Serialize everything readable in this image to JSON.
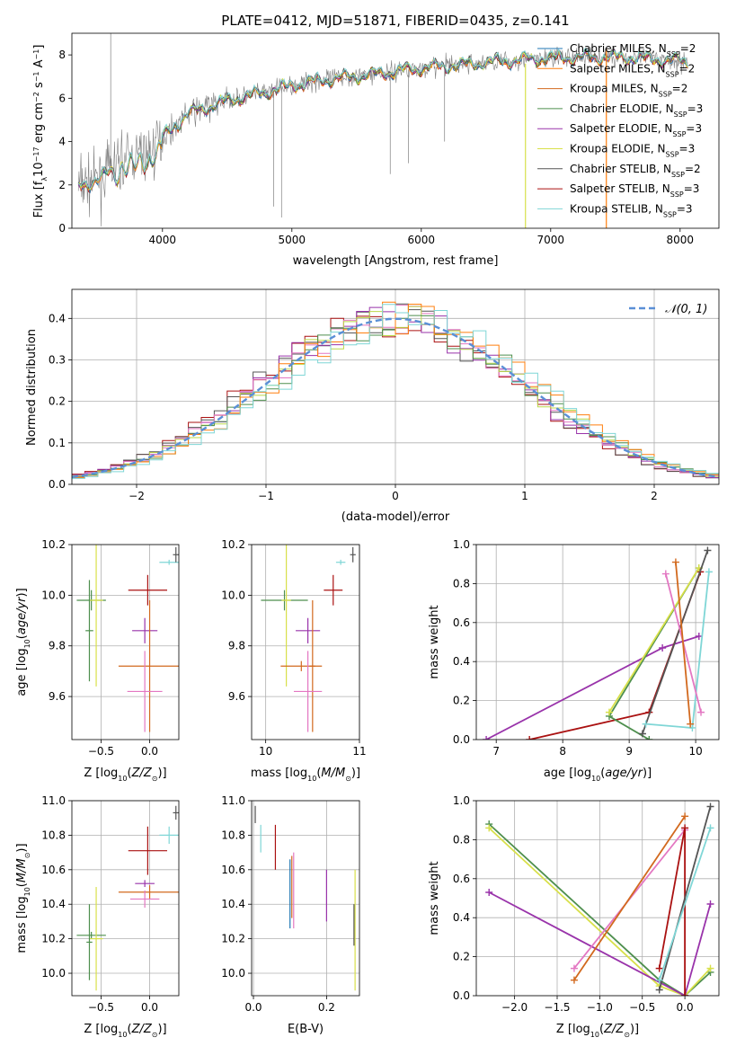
{
  "colors": {
    "Chabrier MILES": "#1f77b4",
    "Salpeter MILES": "#ff7f0e",
    "Kroupa MILES": "#d2691e",
    "Chabrier ELODIE": "#4e8f4e",
    "Salpeter ELODIE": "#9933aa",
    "Kroupa ELODIE": "#d8e04a",
    "Chabrier STELIB": "#555555",
    "Salpeter STELIB": "#aa1111",
    "Kroupa STELIB": "#7fd6d6",
    "data": "#808080",
    "normal_curve": "#5a8fd6",
    "pink": "#e377c2",
    "lime": "#bcd84a"
  },
  "chart_data": [
    {
      "id": "spectrum",
      "type": "line",
      "title": "PLATE=0412, MJD=51871, FIBERID=0435, z=0.141",
      "xlabel": "wavelength [Angstrom, rest frame]",
      "ylabel": "Flux [f_λ 10^{-17} erg cm^{-2} s^{-1} A^{-1}]",
      "xlim": [
        3300,
        8300
      ],
      "ylim": [
        0,
        9
      ],
      "xticks": [
        "4000",
        "5000",
        "6000",
        "7000",
        "8000"
      ],
      "yticks": [
        "0",
        "2",
        "4",
        "6",
        "8"
      ],
      "grid": false,
      "legend_position": "top-right",
      "legend": [
        {
          "label": "Chabrier MILES, N",
          "sub": "SSP",
          "suffix": "=2"
        },
        {
          "label": "Salpeter MILES, N",
          "sub": "SSP",
          "suffix": "=2"
        },
        {
          "label": "Kroupa MILES, N",
          "sub": "SSP",
          "suffix": "=2"
        },
        {
          "label": "Chabrier ELODIE, N",
          "sub": "SSP",
          "suffix": "=3"
        },
        {
          "label": "Salpeter ELODIE, N",
          "sub": "SSP",
          "suffix": "=3"
        },
        {
          "label": "Kroupa ELODIE, N",
          "sub": "SSP",
          "suffix": "=3"
        },
        {
          "label": "Chabrier STELIB, N",
          "sub": "SSP",
          "suffix": "=2"
        },
        {
          "label": "Salpeter STELIB, N",
          "sub": "SSP",
          "suffix": "=3"
        },
        {
          "label": "Kroupa STELIB, N",
          "sub": "SSP",
          "suffix": "=3"
        }
      ],
      "continuum": {
        "x": [
          3350,
          3500,
          3700,
          3900,
          4050,
          4200,
          4500,
          4800,
          5000,
          5300,
          5600,
          6000,
          6400,
          6800,
          7200,
          7600,
          8050
        ],
        "y": [
          2.0,
          2.2,
          3.2,
          3.5,
          4.5,
          5.3,
          5.9,
          6.3,
          6.6,
          6.9,
          7.1,
          7.4,
          7.6,
          7.8,
          7.9,
          7.9,
          7.7
        ]
      }
    },
    {
      "id": "residuals",
      "type": "bar",
      "xlabel": "(data-model)/error",
      "ylabel": "Normed distribution",
      "xlim": [
        -2.5,
        2.5
      ],
      "ylim": [
        0,
        0.47
      ],
      "xticks": [
        "−2",
        "−1",
        "0",
        "1",
        "2"
      ],
      "yticks": [
        "0.0",
        "0.1",
        "0.2",
        "0.3",
        "0.4"
      ],
      "grid": true,
      "legend_position": "top-right",
      "legend": [
        {
          "label": "𝒩(0, 1)"
        }
      ],
      "bin_width": 0.1
    },
    {
      "id": "age_vs_Z",
      "type": "scatter",
      "xlabel": "Z [log10(Z/Z⊙)]",
      "ylabel": "age  [log10(age/yr)]",
      "xlim": [
        -0.8,
        0.3
      ],
      "ylim": [
        9.43,
        10.2
      ],
      "xticks": [
        "−0.5",
        "0.0"
      ],
      "yticks": [
        "9.6",
        "9.8",
        "10.0",
        "10.2"
      ],
      "grid": true,
      "points": [
        {
          "x": -0.6,
          "xe": 0.15,
          "y": 9.98,
          "ye": 0.04,
          "c": "#4e8f4e"
        },
        {
          "x": -0.55,
          "xe": 0.07,
          "y": 9.98,
          "ye": 0.34,
          "c": "#d8e04a"
        },
        {
          "x": -0.62,
          "xe": 0.04,
          "y": 9.86,
          "ye": 0.2,
          "c": "#4e8f4e"
        },
        {
          "x": -0.05,
          "xe": 0.13,
          "y": 9.86,
          "ye": 0.05,
          "c": "#9933aa"
        },
        {
          "x": 0.0,
          "xe": 0.32,
          "y": 9.72,
          "ye": 0.26,
          "c": "#d2691e"
        },
        {
          "x": -0.05,
          "xe": 0.18,
          "y": 9.62,
          "ye": 0.16,
          "c": "#e377c2"
        },
        {
          "x": -0.02,
          "xe": 0.2,
          "y": 10.02,
          "ye": 0.06,
          "c": "#aa1111"
        },
        {
          "x": 0.2,
          "xe": 0.1,
          "y": 10.13,
          "ye": 0.01,
          "c": "#7fd6d6"
        },
        {
          "x": 0.27,
          "xe": 0.03,
          "y": 10.16,
          "ye": 0.03,
          "c": "#555555"
        }
      ]
    },
    {
      "id": "age_vs_mass",
      "type": "scatter",
      "xlabel": "mass [log10(M/M⊙)]",
      "ylabel": "",
      "xlim": [
        9.85,
        11.0
      ],
      "ylim": [
        9.43,
        10.2
      ],
      "xticks": [
        "10",
        "11"
      ],
      "yticks": [
        "9.6",
        "9.8",
        "10.0",
        "10.2"
      ],
      "grid": true,
      "points": [
        {
          "x": 10.2,
          "xe": 0.25,
          "y": 9.98,
          "ye": 0.04,
          "c": "#4e8f4e"
        },
        {
          "x": 10.22,
          "xe": 0.05,
          "y": 9.98,
          "ye": 0.34,
          "c": "#d8e04a"
        },
        {
          "x": 10.45,
          "xe": 0.13,
          "y": 9.86,
          "ye": 0.05,
          "c": "#9933aa"
        },
        {
          "x": 10.5,
          "xe": 0.03,
          "y": 9.72,
          "ye": 0.26,
          "c": "#d2691e"
        },
        {
          "x": 10.38,
          "xe": 0.22,
          "y": 9.72,
          "ye": 0.02,
          "c": "#d2691e"
        },
        {
          "x": 10.45,
          "xe": 0.15,
          "y": 9.62,
          "ye": 0.16,
          "c": "#e377c2"
        },
        {
          "x": 10.72,
          "xe": 0.1,
          "y": 10.02,
          "ye": 0.06,
          "c": "#aa1111"
        },
        {
          "x": 10.8,
          "xe": 0.05,
          "y": 10.13,
          "ye": 0.01,
          "c": "#7fd6d6"
        },
        {
          "x": 10.93,
          "xe": 0.03,
          "y": 10.16,
          "ye": 0.03,
          "c": "#555555"
        }
      ]
    },
    {
      "id": "weight_vs_age",
      "type": "line",
      "xlabel": "age  [log10(age/yr)]",
      "ylabel": "mass weight",
      "xlim": [
        6.7,
        10.35
      ],
      "ylim": [
        0,
        1
      ],
      "xticks": [
        "7",
        "8",
        "9",
        "10"
      ],
      "yticks": [
        "0.0",
        "0.2",
        "0.4",
        "0.6",
        "0.8",
        "1.0"
      ],
      "grid": true,
      "series": [
        {
          "c": "#9933aa",
          "x": [
            6.85,
            9.5,
            10.05
          ],
          "y": [
            0.0,
            0.47,
            0.53
          ]
        },
        {
          "c": "#aa1111",
          "x": [
            7.5,
            9.3,
            10.07
          ],
          "y": [
            0.0,
            0.14,
            0.86
          ]
        },
        {
          "c": "#4e8f4e",
          "x": [
            9.3,
            8.7,
            10.05
          ],
          "y": [
            0.0,
            0.12,
            0.88
          ]
        },
        {
          "c": "#d8e04a",
          "x": [
            8.7,
            10.05
          ],
          "y": [
            0.14,
            0.88
          ]
        },
        {
          "c": "#555555",
          "x": [
            9.2,
            10.18
          ],
          "y": [
            0.03,
            0.97
          ]
        },
        {
          "c": "#7fd6d6",
          "x": [
            9.25,
            9.95,
            10.2
          ],
          "y": [
            0.08,
            0.06,
            0.86
          ]
        },
        {
          "c": "#e377c2",
          "x": [
            9.55,
            10.08
          ],
          "y": [
            0.85,
            0.14
          ]
        },
        {
          "c": "#d2691e",
          "x": [
            9.7,
            9.92
          ],
          "y": [
            0.91,
            0.08
          ]
        }
      ]
    },
    {
      "id": "mass_vs_Z",
      "type": "scatter",
      "xlabel": "Z [log10(Z/Z⊙)]",
      "ylabel": "mass [log10(M/M⊙)]",
      "xlim": [
        -0.8,
        0.3
      ],
      "ylim": [
        9.87,
        11.0
      ],
      "xticks": [
        "−0.5",
        "0.0"
      ],
      "yticks": [
        "10.0",
        "10.2",
        "10.4",
        "10.6",
        "10.8",
        "11.0"
      ],
      "grid": true,
      "points": [
        {
          "x": -0.6,
          "xe": 0.15,
          "y": 10.22,
          "ye": 0.02,
          "c": "#4e8f4e"
        },
        {
          "x": -0.55,
          "xe": 0.07,
          "y": 10.2,
          "ye": 0.3,
          "c": "#d8e04a"
        },
        {
          "x": -0.62,
          "xe": 0.03,
          "y": 10.18,
          "ye": 0.22,
          "c": "#4e8f4e"
        },
        {
          "x": -0.05,
          "xe": 0.1,
          "y": 10.52,
          "ye": 0.02,
          "c": "#9933aa"
        },
        {
          "x": 0.0,
          "xe": 0.32,
          "y": 10.47,
          "ye": 0.04,
          "c": "#d2691e"
        },
        {
          "x": -0.05,
          "xe": 0.15,
          "y": 10.43,
          "ye": 0.05,
          "c": "#e377c2"
        },
        {
          "x": -0.02,
          "xe": 0.2,
          "y": 10.71,
          "ye": 0.14,
          "c": "#aa1111"
        },
        {
          "x": 0.2,
          "xe": 0.1,
          "y": 10.8,
          "ye": 0.05,
          "c": "#7fd6d6"
        },
        {
          "x": 0.27,
          "xe": 0.03,
          "y": 10.93,
          "ye": 0.04,
          "c": "#555555"
        }
      ]
    },
    {
      "id": "mass_vs_ebv",
      "type": "scatter",
      "xlabel": "E(B-V)",
      "ylabel": "",
      "xlim": [
        -0.005,
        0.29
      ],
      "ylim": [
        9.87,
        11.0
      ],
      "xticks": [
        "0.0",
        "0.2"
      ],
      "yticks": [
        "10.0",
        "10.2",
        "10.4",
        "10.6",
        "10.8",
        "11.0"
      ],
      "grid": true,
      "points": [
        {
          "x": 0.005,
          "xe": 0.0,
          "y": 10.92,
          "ye": 0.05,
          "c": "#555555"
        },
        {
          "x": 0.02,
          "xe": 0.0,
          "y": 10.78,
          "ye": 0.08,
          "c": "#7fd6d6"
        },
        {
          "x": 0.06,
          "xe": 0.0,
          "y": 10.73,
          "ye": 0.13,
          "c": "#aa1111"
        },
        {
          "x": 0.1,
          "xe": 0.0,
          "y": 10.46,
          "ye": 0.2,
          "c": "#1f77b4"
        },
        {
          "x": 0.105,
          "xe": 0.0,
          "y": 10.5,
          "ye": 0.18,
          "c": "#d2691e"
        },
        {
          "x": 0.11,
          "xe": 0.0,
          "y": 10.48,
          "ye": 0.22,
          "c": "#e377c2"
        },
        {
          "x": 0.2,
          "xe": 0.0,
          "y": 10.45,
          "ye": 0.15,
          "c": "#9933aa"
        },
        {
          "x": 0.278,
          "xe": 0.0,
          "y": 10.25,
          "ye": 0.35,
          "c": "#d8e04a"
        },
        {
          "x": 0.275,
          "xe": 0.0,
          "y": 10.28,
          "ye": 0.12,
          "c": "#555555"
        }
      ]
    },
    {
      "id": "weight_vs_Z",
      "type": "line",
      "xlabel": "Z [log10(Z/Z⊙)]",
      "ylabel": "mass weight",
      "xlim": [
        -2.45,
        0.4
      ],
      "ylim": [
        0,
        1
      ],
      "xticks": [
        "−2.0",
        "−1.5",
        "−1.0",
        "−0.5",
        "0.0"
      ],
      "yticks": [
        "0.0",
        "0.2",
        "0.4",
        "0.6",
        "0.8",
        "1.0"
      ],
      "grid": true,
      "series": [
        {
          "c": "#4e8f4e",
          "x": [
            -2.3,
            -0.3,
            0.0,
            0.3
          ],
          "y": [
            0.88,
            0.08,
            0.0,
            0.12
          ]
        },
        {
          "c": "#d8e04a",
          "x": [
            -2.3,
            -0.3,
            0.0,
            0.3
          ],
          "y": [
            0.86,
            0.05,
            0.0,
            0.14
          ]
        },
        {
          "c": "#9933aa",
          "x": [
            -2.3,
            0.0,
            0.3
          ],
          "y": [
            0.53,
            0.0,
            0.47
          ]
        },
        {
          "c": "#e377c2",
          "x": [
            -1.3,
            0.0
          ],
          "y": [
            0.14,
            0.85
          ]
        },
        {
          "c": "#d2691e",
          "x": [
            -1.3,
            0.0
          ],
          "y": [
            0.08,
            0.92
          ]
        },
        {
          "c": "#aa1111",
          "x": [
            -0.3,
            0.0,
            0.0
          ],
          "y": [
            0.14,
            0.86,
            0.0
          ]
        },
        {
          "c": "#555555",
          "x": [
            -0.3,
            0.3
          ],
          "y": [
            0.03,
            0.97
          ]
        },
        {
          "c": "#7fd6d6",
          "x": [
            -0.3,
            0.3
          ],
          "y": [
            0.08,
            0.86
          ]
        }
      ]
    }
  ]
}
